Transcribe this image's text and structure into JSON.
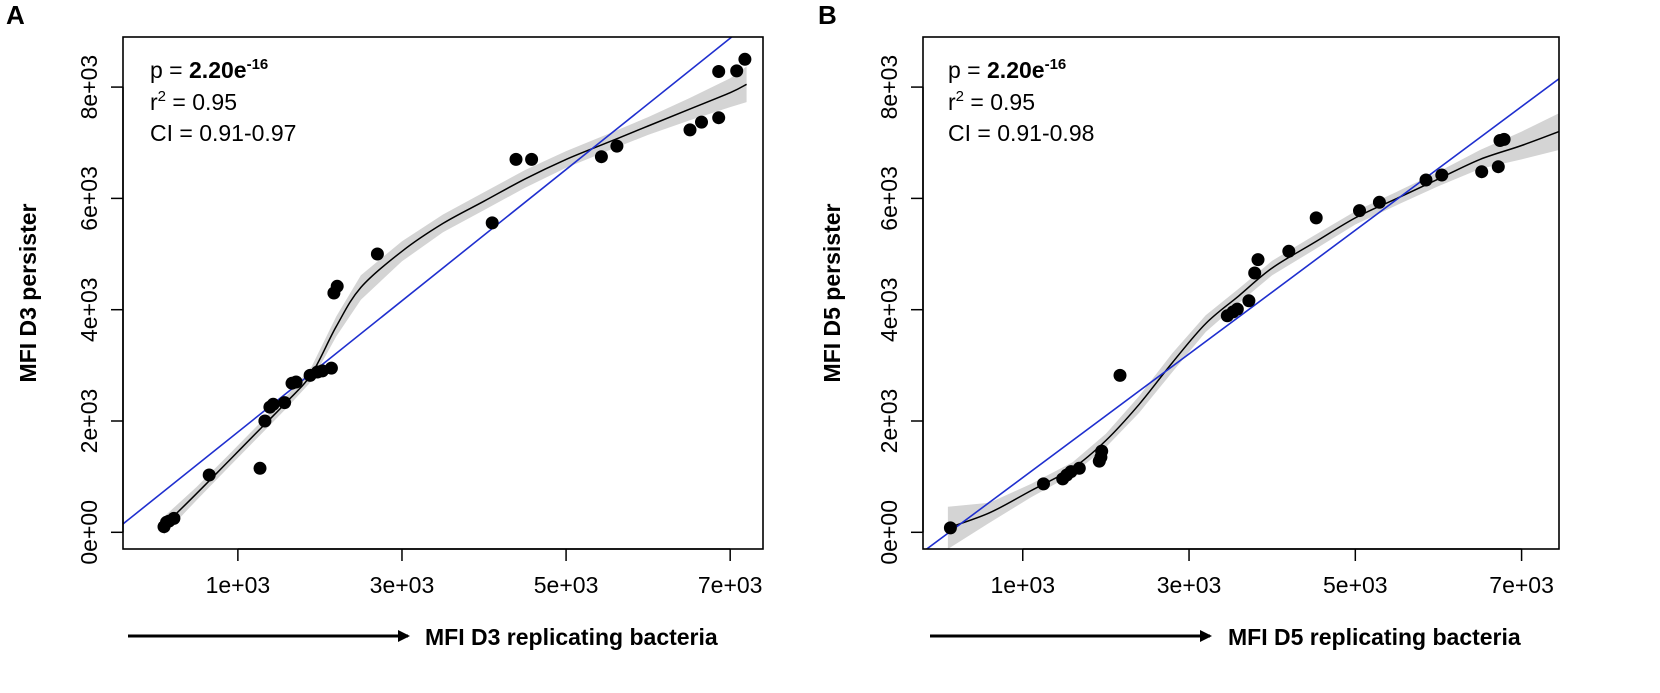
{
  "chart_data": [
    {
      "type": "scatter",
      "panel": "A",
      "xlabel": "MFI D3 replicating bacteria",
      "ylabel": "MFI D3 persister",
      "xlim": [
        -400,
        7400
      ],
      "ylim": [
        -300,
        8900
      ],
      "x_ticks": [
        1000,
        3000,
        5000,
        7000
      ],
      "x_tick_labels": [
        "1e+03",
        "3e+03",
        "5e+03",
        "7e+03"
      ],
      "y_ticks": [
        0,
        2000,
        4000,
        6000,
        8000
      ],
      "y_tick_labels": [
        "0e+00",
        "2e+03",
        "4e+03",
        "6e+03",
        "8e+03"
      ],
      "stats": {
        "p_prefix": "p = ",
        "p_mantissa": "2.20e",
        "p_exponent": "-16",
        "r2_prefix": "r",
        "r2_sup": "2",
        "r2_value": " = 0.95",
        "ci": "CI = 0.91-0.97"
      },
      "points": [
        [
          100,
          100
        ],
        [
          130,
          180
        ],
        [
          160,
          200
        ],
        [
          220,
          250
        ],
        [
          650,
          1030
        ],
        [
          1270,
          1150
        ],
        [
          1330,
          2000
        ],
        [
          1390,
          2250
        ],
        [
          1430,
          2300
        ],
        [
          1570,
          2330
        ],
        [
          1660,
          2680
        ],
        [
          1710,
          2700
        ],
        [
          1880,
          2820
        ],
        [
          1970,
          2880
        ],
        [
          2030,
          2900
        ],
        [
          2140,
          2950
        ],
        [
          2170,
          4300
        ],
        [
          2210,
          4420
        ],
        [
          2700,
          5000
        ],
        [
          4100,
          5560
        ],
        [
          4390,
          6700
        ],
        [
          4580,
          6700
        ],
        [
          5430,
          6750
        ],
        [
          5620,
          6940
        ],
        [
          6510,
          7230
        ],
        [
          6650,
          7370
        ],
        [
          6860,
          7450
        ],
        [
          6860,
          8280
        ],
        [
          7080,
          8290
        ],
        [
          7180,
          8500
        ]
      ],
      "regression_line": [
        [
          -400,
          150
        ],
        [
          7400,
          9350
        ]
      ],
      "smooth_curve": [
        [
          100,
          120
        ],
        [
          500,
          700
        ],
        [
          900,
          1300
        ],
        [
          1300,
          1900
        ],
        [
          1600,
          2350
        ],
        [
          1900,
          2850
        ],
        [
          2200,
          3700
        ],
        [
          2500,
          4400
        ],
        [
          3000,
          5050
        ],
        [
          3500,
          5550
        ],
        [
          4000,
          5950
        ],
        [
          4500,
          6350
        ],
        [
          5000,
          6700
        ],
        [
          5500,
          7000
        ],
        [
          6000,
          7300
        ],
        [
          6500,
          7600
        ],
        [
          7000,
          7900
        ],
        [
          7200,
          8050
        ]
      ],
      "smooth_band_halfwidth": [
        160,
        120,
        110,
        110,
        110,
        130,
        180,
        220,
        180,
        160,
        160,
        160,
        150,
        150,
        160,
        200,
        260,
        320
      ],
      "colors": {
        "points": "#000000",
        "regression": "#1f2fcf",
        "smooth": "#000000",
        "band": "#d4d4d4"
      }
    },
    {
      "type": "scatter",
      "panel": "B",
      "xlabel": "MFI D5 replicating bacteria",
      "ylabel": "MFI D5 persister",
      "xlim": [
        -200,
        7450
      ],
      "ylim": [
        -300,
        8900
      ],
      "x_ticks": [
        1000,
        3000,
        5000,
        7000
      ],
      "x_tick_labels": [
        "1e+03",
        "3e+03",
        "5e+03",
        "7e+03"
      ],
      "y_ticks": [
        0,
        2000,
        4000,
        6000,
        8000
      ],
      "y_tick_labels": [
        "0e+00",
        "2e+03",
        "4e+03",
        "6e+03",
        "8e+03"
      ],
      "stats": {
        "p_prefix": "p = ",
        "p_mantissa": "2.20e",
        "p_exponent": "-16",
        "r2_prefix": "r",
        "r2_sup": "2",
        "r2_value": " = 0.95",
        "ci": "CI = 0.91-0.98"
      },
      "points": [
        [
          130,
          80
        ],
        [
          1250,
          870
        ],
        [
          1480,
          960
        ],
        [
          1530,
          1030
        ],
        [
          1580,
          1090
        ],
        [
          1680,
          1150
        ],
        [
          1920,
          1280
        ],
        [
          1940,
          1350
        ],
        [
          1950,
          1460
        ],
        [
          2170,
          2820
        ],
        [
          3460,
          3890
        ],
        [
          3530,
          3960
        ],
        [
          3580,
          4010
        ],
        [
          3720,
          4160
        ],
        [
          3790,
          4660
        ],
        [
          3830,
          4900
        ],
        [
          4200,
          5050
        ],
        [
          4530,
          5650
        ],
        [
          5050,
          5780
        ],
        [
          5290,
          5930
        ],
        [
          5850,
          6330
        ],
        [
          6040,
          6420
        ],
        [
          6520,
          6480
        ],
        [
          6720,
          6570
        ],
        [
          6740,
          7040
        ],
        [
          6790,
          7060
        ]
      ],
      "regression_line": [
        [
          -200,
          -350
        ],
        [
          7450,
          8150
        ]
      ],
      "smooth_curve": [
        [
          100,
          80
        ],
        [
          600,
          350
        ],
        [
          1100,
          750
        ],
        [
          1600,
          1150
        ],
        [
          2000,
          1650
        ],
        [
          2400,
          2300
        ],
        [
          2800,
          3050
        ],
        [
          3200,
          3750
        ],
        [
          3600,
          4250
        ],
        [
          4000,
          4750
        ],
        [
          4500,
          5200
        ],
        [
          5000,
          5650
        ],
        [
          5500,
          6000
        ],
        [
          6000,
          6350
        ],
        [
          6500,
          6700
        ],
        [
          7000,
          6950
        ],
        [
          7450,
          7200
        ]
      ],
      "smooth_band_halfwidth": [
        380,
        180,
        120,
        110,
        120,
        150,
        170,
        150,
        130,
        130,
        130,
        120,
        120,
        130,
        170,
        250,
        330
      ],
      "colors": {
        "points": "#000000",
        "regression": "#1f2fcf",
        "smooth": "#000000",
        "band": "#d4d4d4"
      }
    }
  ]
}
